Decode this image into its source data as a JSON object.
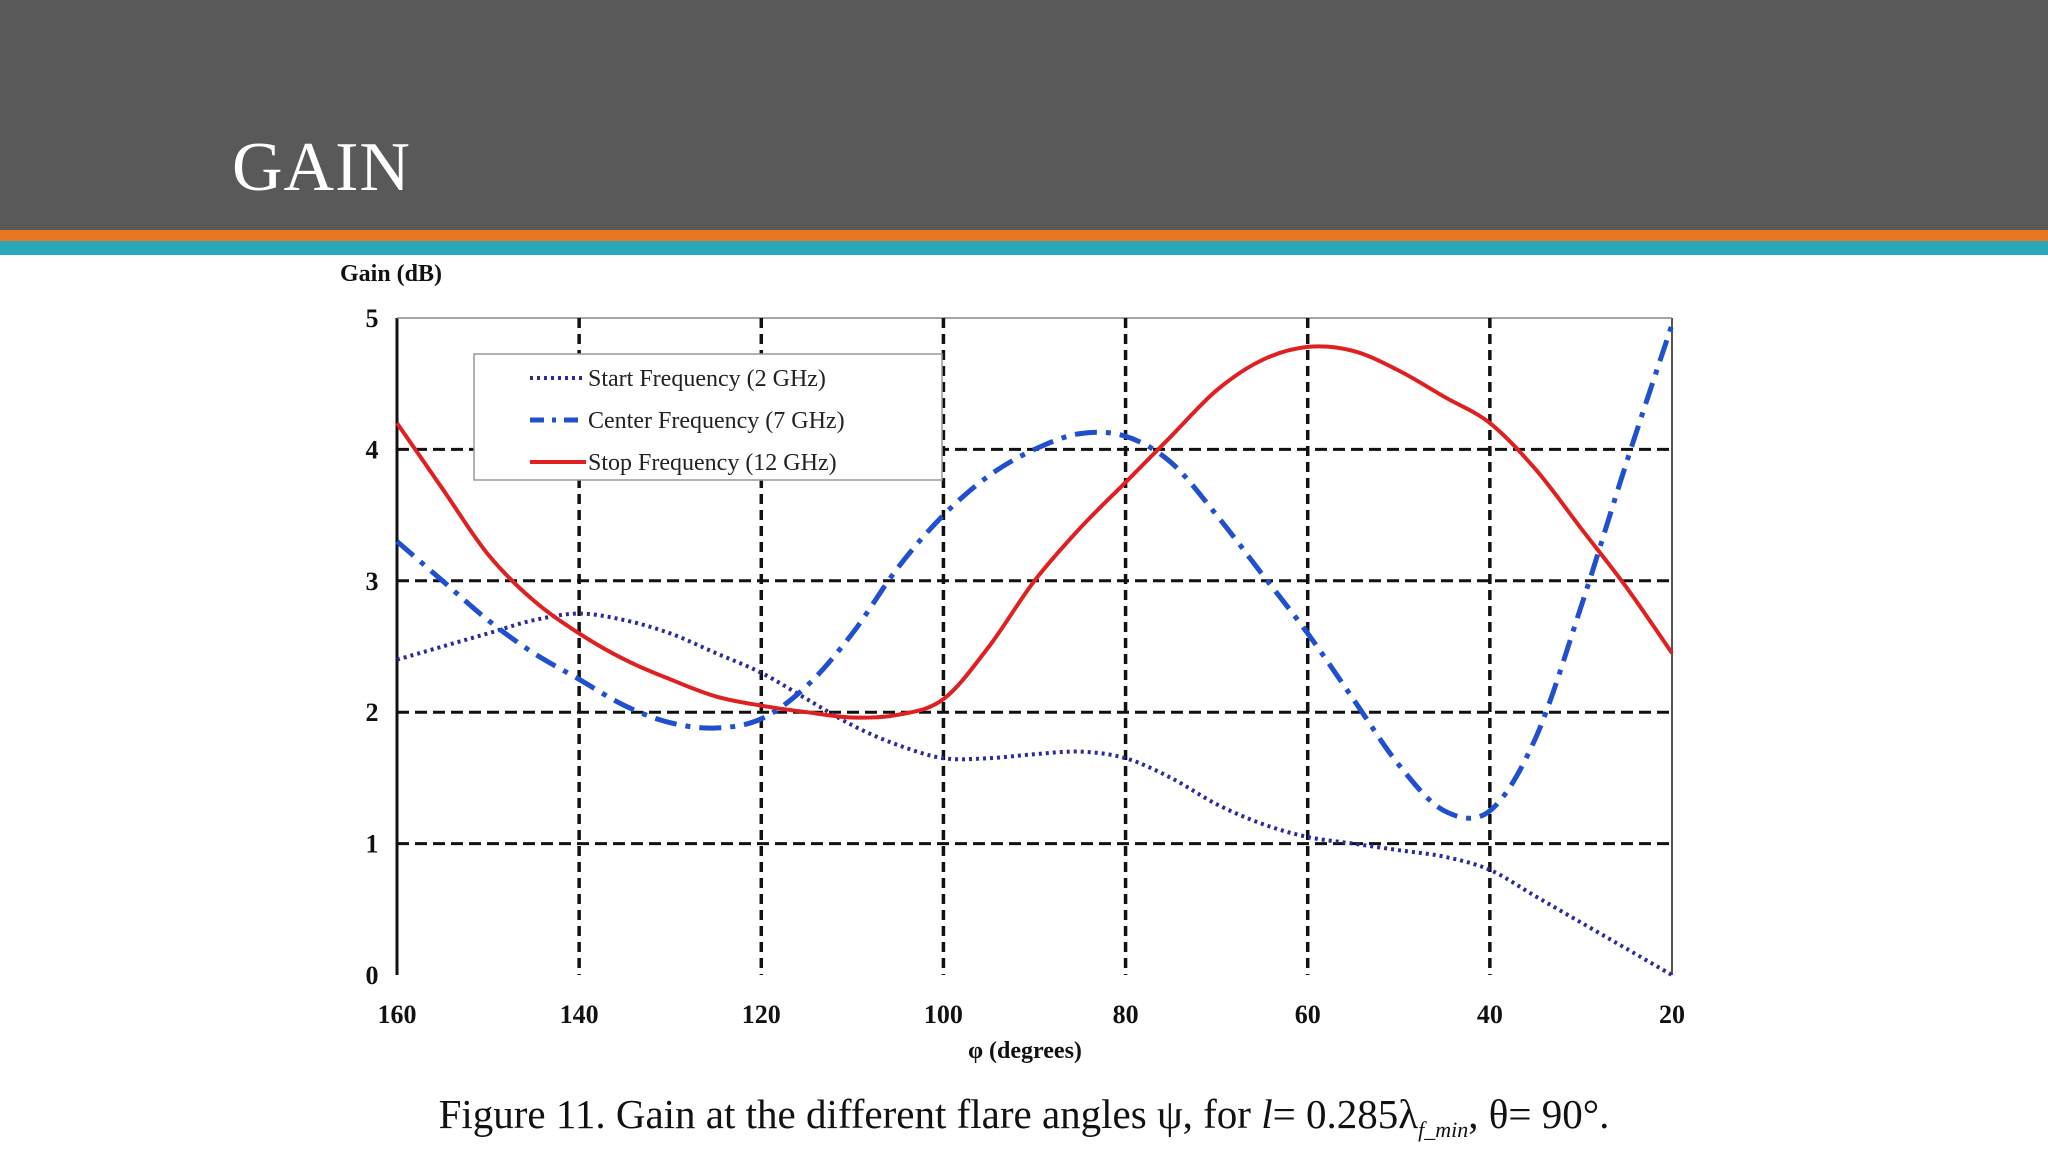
{
  "slide": {
    "title": "GAIN",
    "accent_colors": {
      "header_bg": "#595959",
      "stripe_top": "#e87722",
      "stripe_bottom": "#2aa7b8"
    }
  },
  "figure_caption": {
    "prefix": "Figure 11.  Gain at the different flare angles ψ, for",
    "l_symbol": "l",
    "equals_value": "= 0.285λ",
    "lambda_subscript": "f_min",
    "theta_part": ", θ= 90°."
  },
  "chart_data": {
    "type": "line",
    "ylabel": "Gain (dB)",
    "xlabel": "φ (degrees)",
    "x_ticks": [
      160,
      140,
      120,
      100,
      80,
      60,
      40,
      20
    ],
    "x_tick_labels": [
      "160",
      "140",
      "120",
      "100",
      "80",
      "60",
      "40",
      "20"
    ],
    "x_axis_reversed": true,
    "xlim": [
      160,
      20
    ],
    "y_ticks": [
      0,
      1,
      2,
      3,
      4,
      5
    ],
    "y_tick_labels": [
      "0",
      "1",
      "2",
      "3",
      "4",
      "5"
    ],
    "ylim": [
      0,
      5
    ],
    "grid": true,
    "legend_position": "top-left",
    "series": [
      {
        "name": "Start Frequency (2 GHz)",
        "color": "#2b2b9a",
        "style": "dotted",
        "x": [
          160,
          155,
          150,
          145,
          140,
          135,
          130,
          125,
          120,
          115,
          110,
          105,
          100,
          95,
          90,
          85,
          80,
          75,
          70,
          65,
          60,
          55,
          50,
          45,
          40,
          35,
          30,
          25,
          20
        ],
        "y": [
          2.4,
          2.5,
          2.6,
          2.7,
          2.75,
          2.7,
          2.6,
          2.45,
          2.3,
          2.1,
          1.9,
          1.75,
          1.65,
          1.65,
          1.68,
          1.7,
          1.65,
          1.5,
          1.3,
          1.15,
          1.05,
          1.0,
          0.95,
          0.9,
          0.8,
          0.6,
          0.4,
          0.2,
          0.0
        ]
      },
      {
        "name": "Center Frequency (7 GHz)",
        "color": "#2050d0",
        "style": "dash-dot",
        "x": [
          160,
          155,
          150,
          145,
          140,
          135,
          130,
          125,
          120,
          115,
          110,
          105,
          100,
          95,
          90,
          85,
          80,
          75,
          70,
          65,
          60,
          55,
          50,
          45,
          40,
          35,
          30,
          25,
          20
        ],
        "y": [
          3.3,
          3.0,
          2.7,
          2.45,
          2.25,
          2.05,
          1.92,
          1.88,
          1.95,
          2.2,
          2.6,
          3.1,
          3.5,
          3.8,
          4.0,
          4.12,
          4.1,
          3.9,
          3.5,
          3.05,
          2.6,
          2.1,
          1.6,
          1.25,
          1.25,
          1.8,
          2.8,
          3.9,
          4.95
        ]
      },
      {
        "name": "Stop Frequency (12 GHz)",
        "color": "#e02020",
        "style": "solid",
        "x": [
          160,
          155,
          150,
          145,
          140,
          135,
          130,
          125,
          120,
          115,
          110,
          105,
          100,
          95,
          90,
          85,
          80,
          75,
          70,
          65,
          60,
          55,
          50,
          45,
          40,
          35,
          30,
          25,
          20
        ],
        "y": [
          4.2,
          3.7,
          3.2,
          2.85,
          2.6,
          2.4,
          2.25,
          2.12,
          2.05,
          2.0,
          1.96,
          1.98,
          2.1,
          2.5,
          3.0,
          3.4,
          3.75,
          4.1,
          4.45,
          4.68,
          4.78,
          4.75,
          4.6,
          4.4,
          4.2,
          3.85,
          3.4,
          2.95,
          2.45
        ]
      }
    ]
  }
}
